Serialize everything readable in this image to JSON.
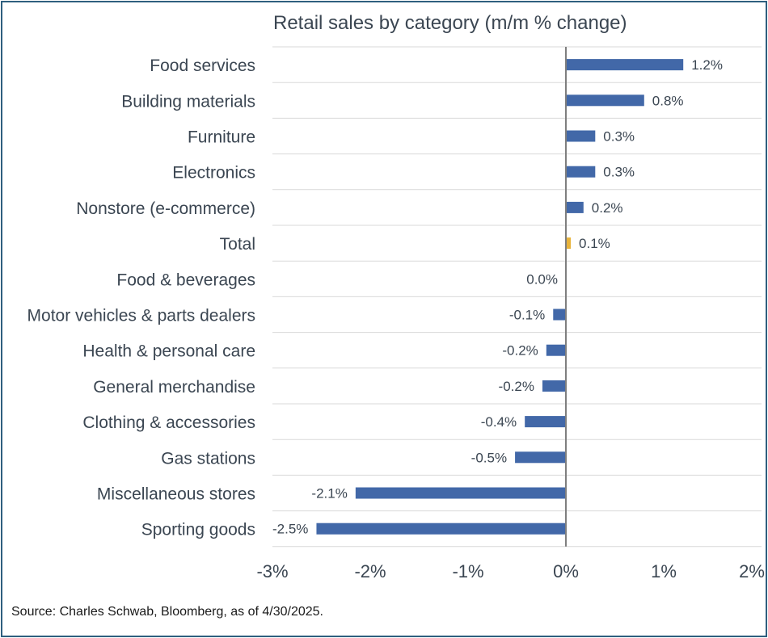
{
  "chart_data": {
    "type": "bar",
    "orientation": "horizontal",
    "title": "Retail sales by category (m/m % change)",
    "xlabel": "",
    "ylabel": "",
    "xlim": [
      -3,
      2
    ],
    "x_ticks": [
      -3,
      -2,
      -1,
      0,
      1,
      2
    ],
    "x_tick_labels": [
      "-3%",
      "-2%",
      "-1%",
      "0%",
      "1%",
      "2%"
    ],
    "grid": "horizontal row separators",
    "categories": [
      "Food services",
      "Building materials",
      "Furniture",
      "Electronics",
      "Nonstore (e-commerce)",
      "Total",
      "Food & beverages",
      "Motor vehicles & parts dealers",
      "Health & personal care",
      "General merchandise",
      "Clothing & accessories",
      "Gas stations",
      "Miscellaneous stores",
      "Sporting goods"
    ],
    "values": [
      1.2,
      0.8,
      0.3,
      0.3,
      0.18,
      0.05,
      0.0,
      -0.13,
      -0.2,
      -0.24,
      -0.42,
      -0.52,
      -2.15,
      -2.55
    ],
    "value_labels": [
      "1.2%",
      "0.8%",
      "0.3%",
      "0.3%",
      "0.2%",
      "0.1%",
      "0.0%",
      "-0.1%",
      "-0.2%",
      "-0.2%",
      "-0.4%",
      "-0.5%",
      "-2.1%",
      "-2.5%"
    ],
    "highlight_category": "Total",
    "colors": {
      "bar": "#4268a8",
      "highlight": "#e8b33a",
      "text": "#3b4652",
      "grid": "#d9d9d9",
      "axis": "#7f7f7f",
      "border": "#2f5f7f"
    }
  },
  "footer": {
    "source": "Source: Charles Schwab, Bloomberg, as of 4/30/2025."
  }
}
